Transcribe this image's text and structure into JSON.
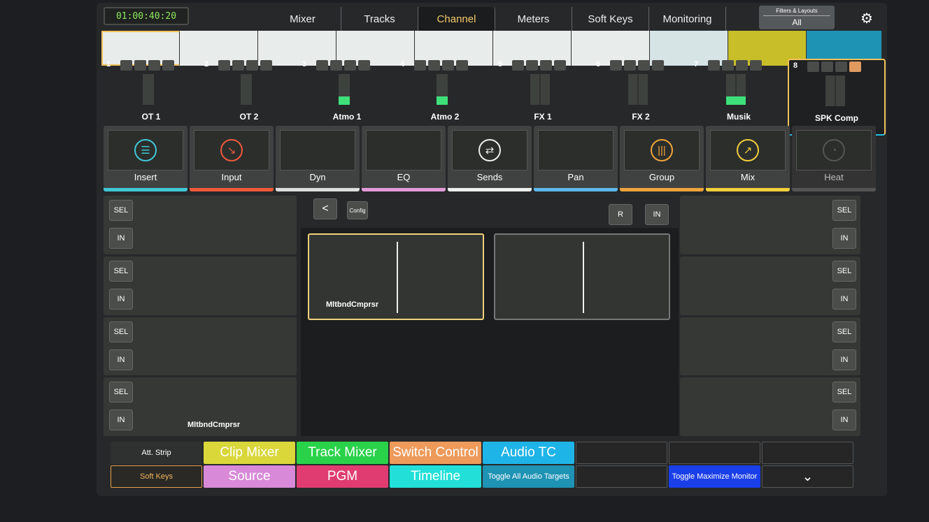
{
  "timecode": "01:00:40:20",
  "tabs": [
    {
      "label": "Mixer"
    },
    {
      "label": "Tracks"
    },
    {
      "label": "Channel",
      "active": true
    },
    {
      "label": "Meters"
    },
    {
      "label": "Soft Keys"
    },
    {
      "label": "Monitoring"
    }
  ],
  "filters": {
    "title": "Filters & Layouts",
    "value": "All"
  },
  "colors": {
    "accent": "#f5c96a",
    "selected_top": "#f3c25c",
    "selected_bottom": "#22c1e8",
    "meter": "#3ee07a",
    "strip_yellow": "#c8be2a",
    "strip_teal": "#1e93b4"
  },
  "tracks": [
    {
      "num": "1",
      "name": "OT 1"
    },
    {
      "num": "2",
      "name": "OT 2"
    },
    {
      "num": "3",
      "name": "Atmo 1",
      "level": "on"
    },
    {
      "num": "4",
      "name": "Atmo 2",
      "level": "on"
    },
    {
      "num": "5",
      "name": "FX 1"
    },
    {
      "num": "6",
      "name": "FX 2"
    },
    {
      "num": "7",
      "name": "Musik",
      "level": "on"
    },
    {
      "num": "8",
      "name": "SPK Comp",
      "selected": true
    }
  ],
  "sections": [
    {
      "label": "Insert",
      "icon": "list-icon",
      "color": "#3fc8d8"
    },
    {
      "label": "Input",
      "icon": "arrow-down-right-icon",
      "color": "#ee5a3a"
    },
    {
      "label": "Dyn",
      "color": "#dddddd"
    },
    {
      "label": "EQ",
      "color": "#e49ad8"
    },
    {
      "label": "Sends",
      "icon": "arrows-right-left-icon",
      "color": "#eeeeee"
    },
    {
      "label": "Pan",
      "color": "#5eb8ec"
    },
    {
      "label": "Group",
      "icon": "bars-icon",
      "color": "#f1a43a"
    },
    {
      "label": "Mix",
      "icon": "arrow-up-right-icon",
      "color": "#f2cf3a"
    },
    {
      "label": "Heat",
      "icon": "gauge-icon",
      "color": "#555555"
    }
  ],
  "sel_label": "SEL",
  "in_label": "IN",
  "left_slots": [
    {
      "name": ""
    },
    {
      "name": ""
    },
    {
      "name": ""
    },
    {
      "name": "MltbndCmprsr"
    }
  ],
  "toolbar": {
    "back": "<",
    "config": "Config",
    "r": "R",
    "in": "IN"
  },
  "plugins": [
    {
      "name": "MltbndCmprsr",
      "selected": true
    },
    {
      "name": ""
    }
  ],
  "bottom": [
    {
      "label": "Att. Strip",
      "bg": "#2f3130",
      "fg": "#fff",
      "small": true
    },
    {
      "label": "Clip Mixer",
      "bg": "#d9d73a"
    },
    {
      "label": "Track Mixer",
      "bg": "#2ad24a"
    },
    {
      "label": "Switch Control",
      "bg": "#ee9a5a"
    },
    {
      "label": "Audio TC",
      "bg": "#1eb4e8"
    },
    {
      "label": ""
    },
    {
      "label": ""
    },
    {
      "label": ""
    },
    {
      "label": "Soft Keys",
      "bg": "#2a2926",
      "fg": "#f5b45a",
      "small": true,
      "border": "#e8a04a"
    },
    {
      "label": "Source",
      "bg": "#d88ad8"
    },
    {
      "label": "PGM",
      "bg": "#e03c72"
    },
    {
      "label": "Timeline",
      "bg": "#22e0d8"
    },
    {
      "label": "Toggle All Audio Targets",
      "bg": "#1e93b4",
      "small": true
    },
    {
      "label": ""
    },
    {
      "label": "Toggle Maximize Monitor",
      "bg": "#1a3ee8",
      "small": true
    },
    {
      "label": "⌄",
      "bg": "#262626",
      "border": "#555"
    }
  ]
}
